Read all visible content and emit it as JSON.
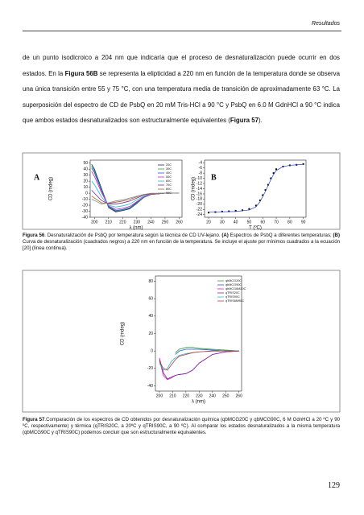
{
  "header": {
    "section": "Resultados"
  },
  "paragraph": [
    {
      "text": "de un punto isodicroico a 204 nm que indicaría que el proceso de desnaturalización puede ocurrir en dos estados. En la ",
      "bold": false
    },
    {
      "text": "Figura 56B",
      "bold": true
    },
    {
      "text": " se representa la elipticidad a 220 nm en función de la temperatura donde se observa una única transición entre 55 y 75 °C, con una temperatura media de transición de aproximadamente 63 °C. La superposición del espectro de CD de PsbQ en 20 mM Tris-HCl a 90 °C y PsbQ en 6.0 M GdnHCl a 90 °C indica que ambos estados desnaturalizados son estructuralmente equivalentes (",
      "bold": false
    },
    {
      "text": "Figura 57",
      "bold": true
    },
    {
      "text": ").",
      "bold": false
    }
  ],
  "figures": [
    {
      "panels": [
        {
          "type": "line",
          "panel_label": "A",
          "xlabel": "λ (nm)",
          "ylabel": "CD (mdeg)",
          "x": [
            198,
            200,
            205,
            210,
            215,
            220,
            225,
            230,
            235,
            240,
            250,
            260
          ],
          "xlim": [
            197,
            262
          ],
          "xticks": [
            200,
            210,
            220,
            230,
            240,
            250,
            260
          ],
          "ylim": [
            -40,
            55
          ],
          "yticks": [
            50,
            40,
            30,
            20,
            10,
            0,
            -10,
            -20,
            -30,
            -40
          ],
          "legend": "upper right",
          "series": [
            {
              "name": "20C",
              "color": "#1a1a8c",
              "values": [
                48,
                40,
                8,
                -24,
                -31,
                -29,
                -26,
                -17,
                -7,
                -2,
                0,
                0
              ]
            },
            {
              "name": "30C",
              "color": "#2e9e2e",
              "values": [
                45,
                37,
                6,
                -23,
                -30,
                -28,
                -25,
                -16,
                -7,
                -2,
                0,
                0
              ]
            },
            {
              "name": "40C",
              "color": "#2255dd",
              "values": [
                42,
                34,
                4,
                -22,
                -29,
                -27,
                -24,
                -15,
                -6,
                -2,
                0,
                0
              ]
            },
            {
              "name": "50C",
              "color": "#d020c0",
              "values": [
                36,
                28,
                1,
                -21,
                -27,
                -25,
                -22,
                -14,
                -6,
                -2,
                0,
                0
              ]
            },
            {
              "name": "60C",
              "color": "#20c0d0",
              "values": [
                20,
                14,
                -6,
                -20,
                -23,
                -21,
                -18,
                -11,
                -5,
                -1,
                0,
                0
              ]
            },
            {
              "name": "70C",
              "color": "#7a2a9a",
              "values": [
                5,
                0,
                -12,
                -18,
                -18,
                -16,
                -13,
                -8,
                -3,
                -1,
                0,
                0
              ]
            },
            {
              "name": "80C",
              "color": "#9a6a2a",
              "values": [
                -5,
                -8,
                -16,
                -17,
                -15,
                -13,
                -10,
                -6,
                -2,
                -1,
                0,
                0
              ]
            },
            {
              "name": "90C",
              "color": "#888888",
              "values": [
                -10,
                -12,
                -18,
                -16,
                -13,
                -11,
                -8,
                -5,
                -2,
                0,
                0,
                0
              ]
            }
          ]
        },
        {
          "type": "scatter",
          "panel_label": "B",
          "xlabel": "T (ºC)",
          "ylabel": "CD (mdeg)",
          "xlim": [
            17,
            92
          ],
          "xticks": [
            20,
            30,
            40,
            50,
            60,
            70,
            80,
            90
          ],
          "ylim": [
            -25,
            -3
          ],
          "yticks": [
            -4,
            -6,
            -8,
            -10,
            -12,
            -14,
            -16,
            -18,
            -20,
            -22,
            -24
          ],
          "points": {
            "color": "#000000",
            "x": [
              20,
              25,
              30,
              35,
              40,
              45,
              50,
              55,
              58,
              60,
              62,
              64,
              66,
              68,
              70,
              75,
              80,
              85,
              90
            ],
            "values": [
              -23.2,
              -23,
              -22.8,
              -22.7,
              -22.5,
              -22.3,
              -21.8,
              -20.5,
              -18.5,
              -16.5,
              -14.5,
              -12.5,
              -10,
              -8,
              -6.5,
              -5.5,
              -5,
              -4.8,
              -4.5
            ]
          },
          "fit": {
            "color": "#2244cc",
            "x": [
              20,
              40,
              50,
              55,
              58,
              60,
              62,
              64,
              66,
              68,
              70,
              75,
              80,
              90
            ],
            "values": [
              -23,
              -22.8,
              -22.2,
              -21,
              -19,
              -17,
              -15,
              -12.8,
              -10.5,
              -8.5,
              -7,
              -5.5,
              -5,
              -4.6
            ]
          }
        }
      ],
      "caption": [
        {
          "text": "Figura 56",
          "bold": true
        },
        {
          "text": ". Desnaturalización de PsbQ por temperatura según la técnica de CD UV-lejano. ",
          "bold": false
        },
        {
          "text": "(A)",
          "bold": true
        },
        {
          "text": " Espectros de PsbQ a diferentes temperaturas; ",
          "bold": false
        },
        {
          "text": "(B)",
          "bold": true
        },
        {
          "text": " Curva de desnaturalización (cuadrados negros) a 220 nm en función de la temperatura. Se incluye el ajuste por mínimos cuadrados a la ecuación [20] (línea continua).",
          "bold": false
        }
      ]
    },
    {
      "panels": [
        {
          "type": "line",
          "xlabel": "λ (nm)",
          "ylabel": "CD (mdeg)",
          "x": [
            200,
            203,
            206,
            209,
            212,
            215,
            220,
            225,
            230,
            240,
            250,
            260
          ],
          "xlim": [
            197,
            262
          ],
          "xticks": [
            200,
            210,
            220,
            230,
            240,
            250,
            260
          ],
          "ylim": [
            -46,
            86
          ],
          "yticks": [
            80,
            60,
            40,
            20,
            0,
            -20,
            -40
          ],
          "legend": "upper right",
          "series": [
            {
              "name": "qbMCG20C",
              "color": "#2e9e2e",
              "values": [
                null,
                null,
                null,
                null,
                -2,
                2,
                4,
                4,
                3,
                2,
                1,
                0
              ]
            },
            {
              "name": "qbMCG90C",
              "color": "#2255dd",
              "values": [
                null,
                null,
                null,
                null,
                -4,
                0,
                2,
                2,
                2,
                1,
                0,
                0
              ]
            },
            {
              "name": "qbMCG6M20C",
              "color": "#d020c0",
              "values": [
                -10,
                -28,
                -33,
                -31,
                -28,
                -27,
                -26,
                -22,
                -14,
                -4,
                -1,
                0
              ]
            },
            {
              "name": "qTRIS20C",
              "color": "#7a2a9a",
              "values": [
                -8,
                -25,
                -32,
                -30,
                -28,
                -27,
                -26,
                -22,
                -14,
                -4,
                -1,
                0
              ]
            },
            {
              "name": "qTRIS90C",
              "color": "#20c0d0",
              "values": [
                -14,
                -22,
                -20,
                -12,
                -8,
                -5,
                -3,
                -2,
                -1,
                0,
                0,
                0
              ]
            },
            {
              "name": "qTRIS6M90C",
              "color": "#cc3333",
              "values": [
                -12,
                -20,
                -22,
                -16,
                -10,
                -6,
                -4,
                -2,
                -1,
                0,
                0,
                0
              ]
            }
          ]
        }
      ],
      "caption": [
        {
          "text": "Figura 57",
          "bold": true
        },
        {
          "text": ".Comparación de los espectros de CD obtenidos por desnaturalización química (qbMCG20C y qbMCG90C, 6 M GdnHCl a 20 ºC y 90 ºC, respectivamente) y térmica (qTRIS20C, a 20ºC y qTRIS90C, a 90 ºC). Al comparar los estados desnaturalizados a la misma temperatura (qbMCG90C y qTRIS90C) podemos concluir que son estructuralmente equivalentes.",
          "bold": false
        }
      ]
    }
  ],
  "footer": {
    "page_number": "129"
  }
}
